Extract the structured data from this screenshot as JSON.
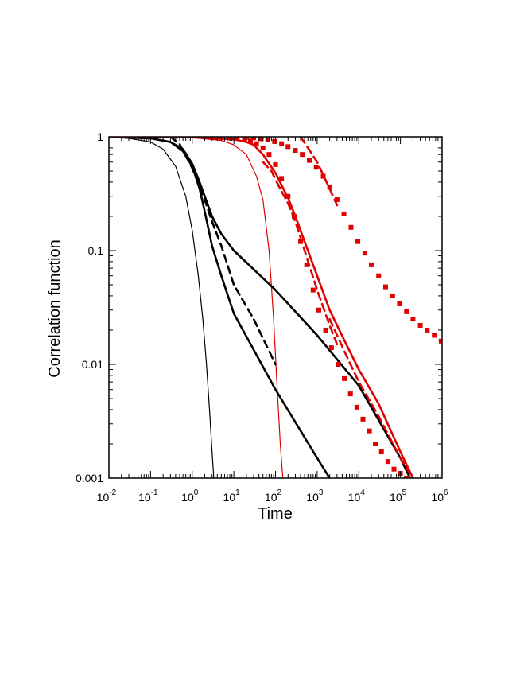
{
  "chart_data": {
    "type": "line",
    "title": "",
    "xlabel": "Time",
    "ylabel": "Correlation function",
    "xscale": "log",
    "yscale": "log",
    "xlim": [
      0.01,
      1000000
    ],
    "ylim": [
      0.001,
      1
    ],
    "grid": false,
    "legend": "none",
    "x_ticks": [
      {
        "base": "10",
        "exp": "-2",
        "value": 0.01
      },
      {
        "base": "10",
        "exp": "-1",
        "value": 0.1
      },
      {
        "base": "10",
        "exp": "0",
        "value": 1
      },
      {
        "base": "10",
        "exp": "1",
        "value": 10
      },
      {
        "base": "10",
        "exp": "2",
        "value": 100
      },
      {
        "base": "10",
        "exp": "3",
        "value": 1000
      },
      {
        "base": "10",
        "exp": "4",
        "value": 10000
      },
      {
        "base": "10",
        "exp": "5",
        "value": 100000
      },
      {
        "base": "10",
        "exp": "6",
        "value": 1000000
      }
    ],
    "y_ticks": [
      {
        "label": "1",
        "value": 1
      },
      {
        "label": "0.1",
        "value": 0.1
      },
      {
        "label": "0.01",
        "value": 0.01
      },
      {
        "label": "0.001",
        "value": 0.001
      }
    ],
    "series": [
      {
        "style": "thin",
        "color": "#000000",
        "x": [
          0.01,
          0.03,
          0.1,
          0.2,
          0.4,
          0.7,
          1.0,
          1.4,
          1.8,
          2.2,
          2.6,
          3.0,
          3.3
        ],
        "y": [
          0.99,
          0.97,
          0.9,
          0.78,
          0.55,
          0.3,
          0.15,
          0.06,
          0.025,
          0.01,
          0.004,
          0.0017,
          0.001
        ]
      },
      {
        "style": "thin",
        "color": "#e00000",
        "x": [
          0.01,
          0.1,
          1,
          5,
          10,
          20,
          35,
          50,
          70,
          90,
          110,
          130,
          150
        ],
        "y": [
          1.0,
          0.995,
          0.98,
          0.93,
          0.85,
          0.7,
          0.45,
          0.28,
          0.1,
          0.025,
          0.006,
          0.002,
          0.001
        ]
      },
      {
        "style": "thick",
        "color": "#000000",
        "x": [
          0.01,
          0.1,
          0.3,
          0.6,
          1,
          1.5,
          2,
          3,
          5,
          10,
          100,
          1000,
          10000,
          100000,
          170000
        ],
        "y": [
          1.0,
          0.97,
          0.9,
          0.78,
          0.58,
          0.4,
          0.3,
          0.2,
          0.14,
          0.1,
          0.045,
          0.018,
          0.0065,
          0.0015,
          0.001
        ]
      },
      {
        "style": "thick",
        "color": "#000000",
        "x": [
          0.01,
          0.1,
          0.3,
          0.6,
          1,
          1.5,
          2,
          2.5,
          3,
          5,
          10,
          100,
          1000,
          2000
        ],
        "y": [
          1.0,
          0.97,
          0.9,
          0.75,
          0.55,
          0.35,
          0.22,
          0.15,
          0.11,
          0.06,
          0.028,
          0.006,
          0.0015,
          0.001
        ]
      },
      {
        "style": "dashed",
        "color": "#000000",
        "x": [
          0.3,
          0.5,
          1,
          2,
          3,
          5,
          10,
          30,
          100
        ],
        "y": [
          1.0,
          0.86,
          0.53,
          0.28,
          0.18,
          0.11,
          0.05,
          0.025,
          0.01
        ]
      },
      {
        "style": "thick",
        "color": "#e00000",
        "x": [
          0.01,
          1,
          10,
          20,
          30,
          50,
          100,
          200,
          300,
          500,
          1000,
          2000,
          5000,
          10000,
          30000,
          100000,
          200000
        ],
        "y": [
          1.0,
          0.99,
          0.95,
          0.9,
          0.85,
          0.7,
          0.48,
          0.29,
          0.2,
          0.12,
          0.06,
          0.03,
          0.015,
          0.009,
          0.0045,
          0.0017,
          0.001
        ]
      },
      {
        "style": "dashed",
        "color": "#e00000",
        "x": [
          50,
          80,
          100,
          200,
          300,
          500,
          1000,
          2000,
          3000
        ],
        "y": [
          0.6,
          0.5,
          0.42,
          0.26,
          0.18,
          0.1,
          0.045,
          0.022,
          0.015
        ]
      },
      {
        "style": "dashed",
        "color": "#e00000",
        "x": [
          400,
          600,
          1000,
          2000,
          3000
        ],
        "y": [
          1.0,
          0.8,
          0.6,
          0.35,
          0.25
        ]
      },
      {
        "style": "dashed",
        "color": "#e00000",
        "x": [
          2000,
          5000,
          10000,
          30000,
          100000,
          200000,
          250000
        ],
        "y": [
          0.025,
          0.012,
          0.007,
          0.0035,
          0.0015,
          0.001,
          0.0009
        ]
      },
      {
        "style": "markers",
        "color": "#e00000",
        "x": [
          3,
          5,
          8,
          12,
          18,
          25,
          35,
          50,
          70,
          100,
          140,
          200,
          280,
          400,
          560,
          800,
          1100,
          1600,
          2200,
          3200,
          4500,
          6300,
          9000,
          12600,
          18000,
          25000,
          35000,
          50000,
          70000,
          100000,
          140000,
          200000
        ],
        "y": [
          1.0,
          0.99,
          0.98,
          0.97,
          0.95,
          0.92,
          0.87,
          0.8,
          0.7,
          0.57,
          0.43,
          0.3,
          0.2,
          0.12,
          0.075,
          0.045,
          0.03,
          0.02,
          0.014,
          0.01,
          0.0075,
          0.0055,
          0.0042,
          0.0033,
          0.0026,
          0.002,
          0.0017,
          0.0014,
          0.0012,
          0.0011,
          0.001,
          0.0009
        ]
      },
      {
        "style": "markers",
        "color": "#e00000",
        "x": [
          20,
          30,
          45,
          65,
          95,
          140,
          200,
          300,
          440,
          650,
          950,
          1400,
          2000,
          3000,
          4400,
          6500,
          9500,
          14000,
          20000,
          30000,
          44000,
          65000,
          95000,
          140000,
          200000,
          300000,
          440000,
          650000,
          950000
        ],
        "y": [
          0.99,
          0.98,
          0.96,
          0.94,
          0.91,
          0.87,
          0.82,
          0.76,
          0.7,
          0.62,
          0.54,
          0.45,
          0.36,
          0.28,
          0.21,
          0.16,
          0.12,
          0.095,
          0.075,
          0.06,
          0.048,
          0.04,
          0.034,
          0.029,
          0.025,
          0.022,
          0.02,
          0.018,
          0.016
        ]
      }
    ]
  }
}
